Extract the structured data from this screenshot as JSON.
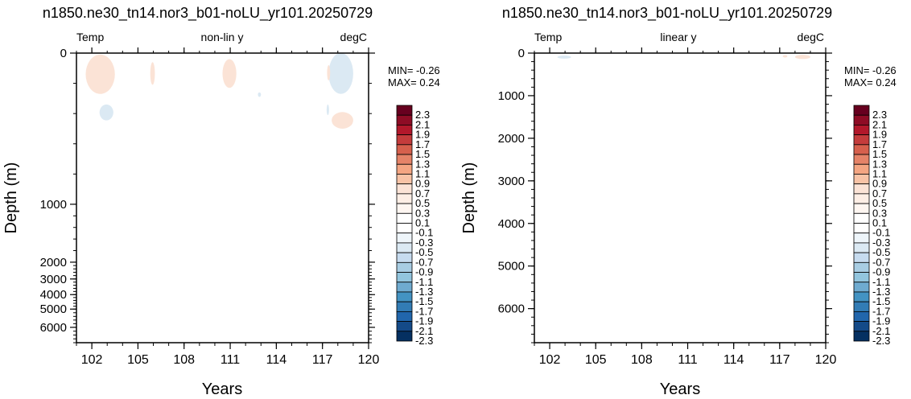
{
  "colors": {
    "warm_anomaly": "#fbe3d6",
    "cool_anomaly": "#dbe9f3",
    "axes": "#000000",
    "background": "#ffffff"
  },
  "colorbar": {
    "labels": [
      "2.3",
      "2.1",
      "1.9",
      "1.7",
      "1.5",
      "1.3",
      "1.1",
      "0.9",
      "0.7",
      "0.5",
      "0.3",
      "0.1",
      "-0.1",
      "-0.3",
      "-0.5",
      "-0.7",
      "-0.9",
      "-1.1",
      "-1.3",
      "-1.5",
      "-1.7",
      "-1.9",
      "-2.1",
      "-2.3"
    ],
    "colors": [
      "#67001f",
      "#8e0c25",
      "#b2182b",
      "#c43c3c",
      "#d6604d",
      "#e58368",
      "#f4a582",
      "#f8c3a6",
      "#fbe3d6",
      "#fdeee5",
      "#fef6f1",
      "#ffffff",
      "#ffffff",
      "#eef5fa",
      "#dbe9f3",
      "#c6dbef",
      "#a8cde3",
      "#92c5de",
      "#6fabd0",
      "#4393c3",
      "#327cb5",
      "#2166ac",
      "#144a88",
      "#053061"
    ]
  },
  "chart_data": [
    {
      "type": "heatmap",
      "title": "n1850.ne30_tn14.nor3_b01-noLU_yr101.20250729",
      "left_label": "Temp",
      "center_label": "non-lin y",
      "right_label": "degC",
      "xlabel": "Years",
      "ylabel": "Depth (m)",
      "xlim": [
        101,
        120
      ],
      "ylim": [
        0,
        6800
      ],
      "y_scale": "non-linear",
      "x_ticks": [
        "102",
        "105",
        "108",
        "111",
        "114",
        "117",
        "120"
      ],
      "y_ticks": [
        "0",
        "1000",
        "2000",
        "3000",
        "4000",
        "5000",
        "6000"
      ],
      "min_label": "MIN= -0.26",
      "max_label": "MAX=  0.24",
      "features": [
        {
          "kind": "warm",
          "x0": 101.6,
          "x1": 103.5,
          "d0": 10,
          "d1": 270,
          "value": 0.1
        },
        {
          "kind": "cool",
          "x0": 102.5,
          "x1": 103.4,
          "d0": 340,
          "d1": 445,
          "value": -0.1
        },
        {
          "kind": "warm",
          "x0": 105.8,
          "x1": 106.1,
          "d0": 60,
          "d1": 210,
          "value": 0.1
        },
        {
          "kind": "warm",
          "x0": 110.5,
          "x1": 111.4,
          "d0": 40,
          "d1": 230,
          "value": 0.1
        },
        {
          "kind": "cool",
          "x0": 112.8,
          "x1": 113.0,
          "d0": 260,
          "d1": 290,
          "value": -0.1
        },
        {
          "kind": "cool",
          "x0": 117.4,
          "x1": 119.0,
          "d0": 0,
          "d1": 270,
          "value": -0.1
        },
        {
          "kind": "warm",
          "x0": 117.3,
          "x1": 117.5,
          "d0": 80,
          "d1": 180,
          "value": 0.1
        },
        {
          "kind": "cool",
          "x0": 117.3,
          "x1": 117.4,
          "d0": 340,
          "d1": 410,
          "value": -0.1
        },
        {
          "kind": "warm",
          "x0": 117.6,
          "x1": 119.0,
          "d0": 390,
          "d1": 500,
          "value": 0.1
        }
      ]
    },
    {
      "type": "heatmap",
      "title": "n1850.ne30_tn14.nor3_b01-noLU_yr101.20250729",
      "left_label": "Temp",
      "center_label": "linear y",
      "right_label": "degC",
      "xlabel": "Years",
      "ylabel": "Depth (m)",
      "xlim": [
        101,
        120
      ],
      "ylim": [
        0,
        6800
      ],
      "y_scale": "linear",
      "x_ticks": [
        "102",
        "105",
        "108",
        "111",
        "114",
        "117",
        "120"
      ],
      "y_ticks": [
        "0",
        "1000",
        "2000",
        "3000",
        "4000",
        "5000",
        "6000"
      ],
      "min_label": "MIN= -0.26",
      "max_label": "MAX=  0.24",
      "features": [
        {
          "kind": "cool",
          "x0": 102.5,
          "x1": 103.4,
          "d0": 60,
          "d1": 130,
          "value": -0.1
        },
        {
          "kind": "warm",
          "x0": 118.0,
          "x1": 119.0,
          "d0": 40,
          "d1": 140,
          "value": 0.1
        },
        {
          "kind": "warm",
          "x0": 117.2,
          "x1": 117.5,
          "d0": 50,
          "d1": 100,
          "value": 0.1
        }
      ]
    }
  ]
}
